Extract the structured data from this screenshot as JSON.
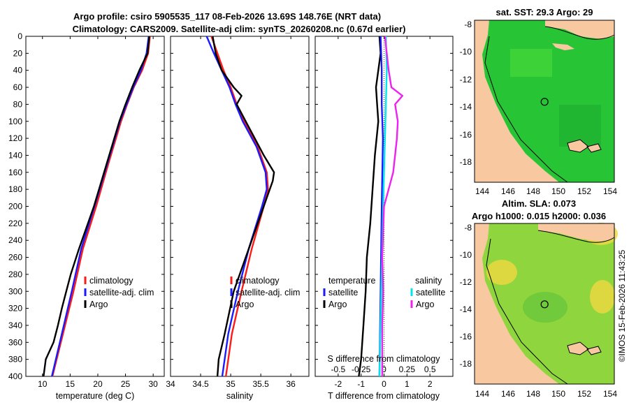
{
  "title": {
    "line1": "Argo profile: csiro 5905535_117 08-Feb-2026 13.69S 148.76E (NRT data)",
    "line2": "Climatology: CARS2009. Satellite-adj clim: synTS_20260208.nc (0.67d earlier)"
  },
  "watermark": "©IMOS 15-Feb-2026 11:43:25",
  "colors": {
    "climatology": "#ff1a1a",
    "satellite_clim": "#1a1aff",
    "argo": "#000000",
    "t_diff_argo": "#000000",
    "t_diff_sat": "#1a1aff",
    "s_diff_sat": "#00e5ee",
    "s_diff_argo": "#ee22ee",
    "land": "#f8c8a0",
    "sst_ocean": "#27c535",
    "sla_ocean": "#8fd63e"
  },
  "chart_data": [
    {
      "type": "line",
      "name": "temperature-profile",
      "xlabel": "temperature (deg C)",
      "ylabel": "depth",
      "xlim": [
        7,
        32
      ],
      "ylim": [
        400,
        0
      ],
      "xticks": [
        10,
        15,
        20,
        25,
        30
      ],
      "yticks": [
        0,
        20,
        40,
        60,
        80,
        100,
        120,
        140,
        160,
        180,
        200,
        220,
        240,
        260,
        280,
        300,
        320,
        340,
        360,
        380,
        400
      ],
      "legend": [
        "climatology",
        "satellite-adj. clim",
        "Argo"
      ],
      "series": [
        {
          "name": "climatology",
          "depth": [
            0,
            20,
            40,
            60,
            80,
            100,
            150,
            200,
            250,
            300,
            350,
            400
          ],
          "values": [
            29.4,
            29.1,
            28.0,
            26.5,
            25.3,
            24.2,
            21.9,
            19.7,
            17.3,
            15.6,
            13.7,
            11.8
          ]
        },
        {
          "name": "satellite-adj. clim",
          "depth": [
            0,
            20,
            40,
            60,
            80,
            100,
            150,
            200,
            250,
            300,
            350,
            400
          ],
          "values": [
            29.2,
            28.8,
            27.8,
            26.4,
            25.2,
            24.0,
            21.7,
            19.4,
            17.0,
            15.3,
            13.5,
            11.7
          ]
        },
        {
          "name": "Argo",
          "depth": [
            0,
            20,
            40,
            60,
            80,
            100,
            150,
            200,
            250,
            280,
            300,
            320,
            340,
            360,
            380,
            400
          ],
          "values": [
            29.3,
            29.0,
            27.5,
            26.2,
            25.0,
            23.9,
            21.6,
            19.3,
            16.6,
            15.1,
            14.3,
            13.5,
            12.8,
            12.0,
            10.6,
            10.2
          ]
        }
      ]
    },
    {
      "type": "line",
      "name": "salinity-profile",
      "xlabel": "salinity",
      "ylabel": "depth",
      "xlim": [
        34,
        36.3
      ],
      "ylim": [
        400,
        0
      ],
      "xticks": [
        34,
        34.5,
        35,
        35.5,
        36
      ],
      "xtick_labels": [
        "34",
        "34.5",
        "35",
        "35.5",
        "36"
      ],
      "legend": [
        "climatology",
        "satellite-adj. clim",
        "Argo"
      ],
      "series": [
        {
          "name": "climatology",
          "depth": [
            0,
            20,
            40,
            60,
            80,
            100,
            130,
            160,
            180,
            200,
            250,
            300,
            350,
            400
          ],
          "values": [
            34.68,
            34.78,
            34.88,
            35.0,
            35.1,
            35.22,
            35.45,
            35.6,
            35.62,
            35.55,
            35.35,
            35.18,
            35.02,
            34.92
          ]
        },
        {
          "name": "satellite-adj. clim",
          "depth": [
            0,
            20,
            40,
            60,
            80,
            100,
            130,
            160,
            180,
            200,
            250,
            300,
            350,
            400
          ],
          "values": [
            34.6,
            34.72,
            34.85,
            34.98,
            35.08,
            35.2,
            35.43,
            35.58,
            35.6,
            35.52,
            35.3,
            35.12,
            34.96,
            34.86
          ]
        },
        {
          "name": "Argo",
          "depth": [
            0,
            20,
            40,
            60,
            70,
            80,
            100,
            120,
            140,
            160,
            170,
            200,
            250,
            300,
            350,
            380,
            400
          ],
          "values": [
            34.7,
            34.75,
            34.85,
            35.05,
            35.18,
            35.1,
            35.25,
            35.4,
            35.55,
            35.72,
            35.7,
            35.55,
            35.3,
            35.05,
            34.9,
            34.8,
            34.78
          ]
        }
      ]
    },
    {
      "type": "line",
      "name": "difference-from-climatology",
      "xlabel": "T difference from climatology",
      "x2label": "S difference from climatology",
      "xlim": [
        -3,
        3
      ],
      "x2lim": [
        -0.75,
        0.75
      ],
      "ylim": [
        400,
        0
      ],
      "xticks": [
        -2,
        -1,
        0,
        1,
        2
      ],
      "x2ticks": [
        -0.5,
        -0.25,
        0,
        0.25,
        0.5
      ],
      "x2tick_labels": [
        "-0.5",
        "-0.25",
        "0",
        "0.25",
        "0.5"
      ],
      "legend_left_title": "temperature",
      "legend_right_title": "salinity",
      "legend": [
        "satellite",
        "Argo",
        "satellite",
        "Argo"
      ],
      "series": [
        {
          "name": "temperature Argo",
          "axis": "T",
          "depth": [
            0,
            20,
            40,
            60,
            80,
            100,
            140,
            180,
            220,
            260,
            300,
            340,
            380,
            400
          ],
          "values": [
            -0.2,
            -0.15,
            -0.25,
            -0.35,
            -0.3,
            -0.25,
            -0.4,
            -0.5,
            -0.6,
            -0.75,
            -0.8,
            -0.9,
            -1.0,
            -1.1
          ]
        },
        {
          "name": "temperature satellite",
          "axis": "T",
          "depth": [
            0,
            40,
            80,
            120,
            200,
            300,
            400
          ],
          "values": [
            -0.15,
            -0.1,
            -0.1,
            -0.05,
            -0.1,
            -0.15,
            -0.2
          ]
        },
        {
          "name": "salinity satellite",
          "axis": "S",
          "depth": [
            0,
            40,
            80,
            120,
            200,
            300,
            400
          ],
          "values": [
            0.02,
            0.03,
            0.02,
            0.01,
            -0.01,
            -0.03,
            -0.05
          ]
        },
        {
          "name": "salinity Argo",
          "axis": "S",
          "depth": [
            0,
            20,
            40,
            60,
            70,
            80,
            100,
            120,
            140,
            160,
            200,
            260,
            300,
            340,
            400
          ],
          "values": [
            0.01,
            0.03,
            0.05,
            0.08,
            0.2,
            0.12,
            0.15,
            0.14,
            0.12,
            0.1,
            0.0,
            -0.02,
            -0.01,
            -0.02,
            -0.02
          ]
        }
      ]
    }
  ],
  "maps": {
    "sst": {
      "title": "sat. SST: 29.3 Argo: 29",
      "lon_ticks": [
        "144",
        "146",
        "148",
        "150",
        "152",
        "154"
      ],
      "lat_ticks": [
        "-8",
        "-10",
        "-12",
        "-14",
        "-16",
        "-18"
      ],
      "lon_range": [
        143.5,
        154
      ],
      "lat_range": [
        -7.8,
        -19.5
      ],
      "marker": {
        "lon": 148.76,
        "lat": -13.69
      }
    },
    "sla": {
      "title_line1": "Altim. SLA: 0.073",
      "title_line2": "Argo h1000: 0.015 h2000: 0.036",
      "lon_ticks": [
        "144",
        "146",
        "148",
        "150",
        "152",
        "154"
      ],
      "lat_ticks": [
        "-8",
        "-10",
        "-12",
        "-14",
        "-16",
        "-18"
      ],
      "lon_range": [
        143.5,
        154
      ],
      "lat_range": [
        -7.8,
        -19.5
      ],
      "marker": {
        "lon": 148.76,
        "lat": -13.69
      }
    }
  }
}
